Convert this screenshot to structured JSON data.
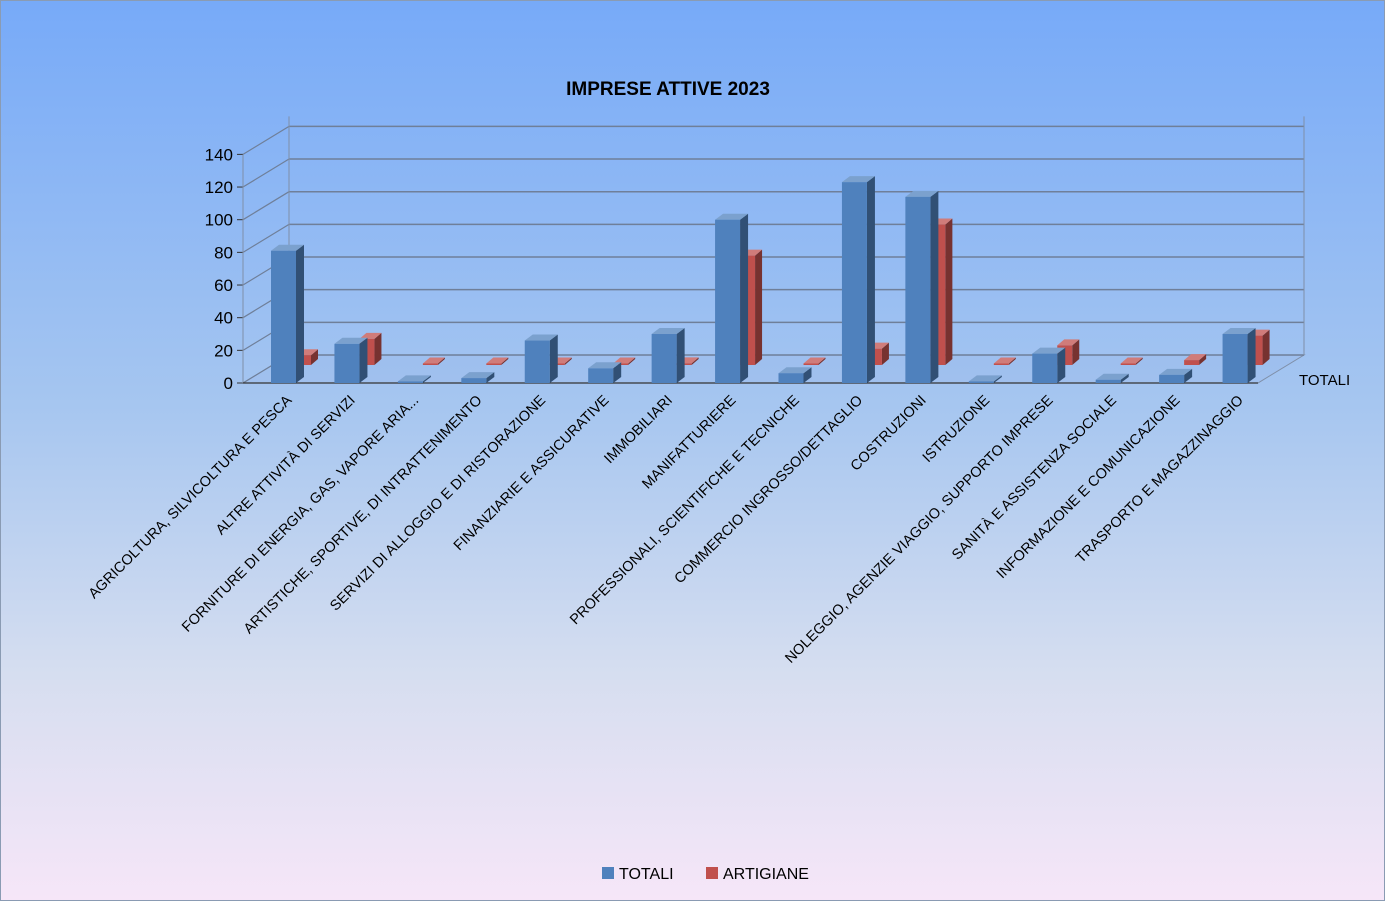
{
  "chart_data": {
    "type": "bar",
    "title": "IMPRESE ATTIVE 2023",
    "depth_label": "TOTALI",
    "ylim": [
      0,
      140
    ],
    "yticks": [
      0,
      20,
      40,
      60,
      80,
      100,
      120,
      140
    ],
    "grid": true,
    "legend_position": "bottom",
    "categories": [
      "AGRICOLTURA, SILVICOLTURA E PESCA",
      "ALTRE ATTIVITÀ DI SERVIZI",
      "FORNITURE DI ENERGIA, GAS, VAPORE ARIA...",
      "ARTISTICHE, SPORTIVE, DI INTRATTENIMENTO",
      "SERVIZI DI ALLOGGIO E DI RISTORAZIONE",
      "FINANZIARIE E ASSICURATIVE",
      "IMMOBILIARI",
      "MANIFATTURIERE",
      "PROFESSIONALI, SCIENTIFICHE E TECNICHE",
      "COMMERCIO INGROSSO/DETTAGLIO",
      "COSTRUZIONI",
      "ISTRUZIONE",
      "NOLEGGIO, AGENZIE  VIAGGIO, SUPPORTO IMPRESE",
      "SANITÀ E ASSISTENZA SOCIALE",
      "INFORMAZIONE E COMUNICAZIONE",
      "TRASPORTO E MAGAZZINAGGIO"
    ],
    "series": [
      {
        "name": "TOTALI",
        "color": "#4f81bd",
        "values": [
          81,
          24,
          1,
          3,
          26,
          9,
          30,
          100,
          6,
          123,
          114,
          1,
          18,
          2,
          5,
          30
        ]
      },
      {
        "name": "ARTIGIANE",
        "color": "#c0504d",
        "values": [
          6,
          16,
          0,
          0,
          0,
          0,
          1,
          67,
          0,
          10,
          86,
          0,
          12,
          0,
          3,
          18
        ]
      }
    ]
  }
}
